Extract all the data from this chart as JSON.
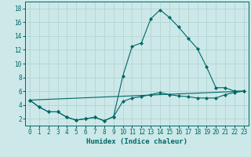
{
  "xlabel": "Humidex (Indice chaleur)",
  "bg_color": "#cce8e8",
  "grid_color": "#b0d0d0",
  "line_color": "#006868",
  "spine_color": "#006868",
  "xlim": [
    -0.5,
    23.5
  ],
  "ylim": [
    1,
    19
  ],
  "xticks": [
    0,
    1,
    2,
    3,
    4,
    5,
    6,
    7,
    8,
    9,
    10,
    11,
    12,
    13,
    14,
    15,
    16,
    17,
    18,
    19,
    20,
    21,
    22,
    23
  ],
  "yticks": [
    2,
    4,
    6,
    8,
    10,
    12,
    14,
    16,
    18
  ],
  "series1": {
    "x": [
      0,
      1,
      2,
      3,
      4,
      5,
      6,
      7,
      8,
      9,
      10,
      11,
      12,
      13,
      14,
      15,
      16,
      17,
      18,
      19,
      20,
      21,
      22,
      23
    ],
    "y": [
      4.7,
      3.7,
      3.0,
      3.0,
      2.2,
      1.8,
      2.0,
      2.2,
      1.7,
      2.3,
      8.2,
      12.5,
      13.0,
      16.5,
      17.8,
      16.7,
      15.3,
      13.7,
      12.2,
      9.5,
      6.5,
      6.5,
      6.0,
      6.0
    ]
  },
  "series2": {
    "x": [
      0,
      1,
      2,
      3,
      4,
      5,
      6,
      7,
      8,
      9,
      10,
      11,
      12,
      13,
      14,
      15,
      16,
      17,
      18,
      19,
      20,
      21,
      22,
      23
    ],
    "y": [
      4.7,
      3.7,
      3.0,
      3.0,
      2.2,
      1.8,
      2.0,
      2.2,
      1.7,
      2.3,
      4.5,
      5.0,
      5.2,
      5.5,
      5.8,
      5.5,
      5.3,
      5.2,
      5.0,
      5.0,
      5.0,
      5.5,
      5.8,
      6.0
    ]
  },
  "series3": {
    "x": [
      0,
      23
    ],
    "y": [
      4.7,
      6.0
    ]
  },
  "tick_fontsize": 5.5,
  "xlabel_fontsize": 6.5
}
